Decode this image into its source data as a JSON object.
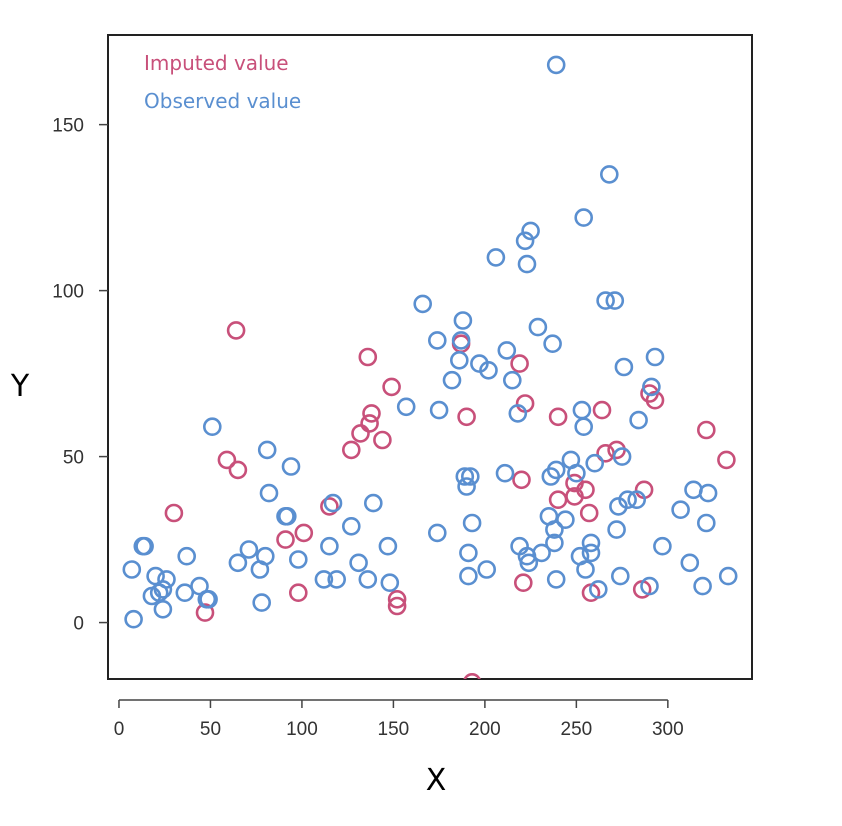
{
  "chart_data": {
    "type": "scatter",
    "xlabel": "X",
    "ylabel": "Y",
    "xlim": [
      -6,
      346
    ],
    "ylim": [
      -17,
      177
    ],
    "x_ticks": [
      0,
      50,
      100,
      150,
      200,
      250,
      300
    ],
    "y_ticks": [
      0,
      50,
      100,
      150
    ],
    "grid": false,
    "legend_position": "top-left",
    "marker": "open-circle",
    "series": [
      {
        "name": "Imputed value",
        "color": "#C8507A",
        "points": [
          [
            30,
            33
          ],
          [
            47,
            3
          ],
          [
            59,
            49
          ],
          [
            64,
            88
          ],
          [
            65,
            46
          ],
          [
            91,
            25
          ],
          [
            98,
            9
          ],
          [
            101,
            27
          ],
          [
            115,
            35
          ],
          [
            127,
            52
          ],
          [
            132,
            57
          ],
          [
            136,
            80
          ],
          [
            137,
            60
          ],
          [
            138,
            63
          ],
          [
            144,
            55
          ],
          [
            149,
            71
          ],
          [
            152,
            7
          ],
          [
            152,
            5
          ],
          [
            187,
            84
          ],
          [
            190,
            62
          ],
          [
            193,
            -18
          ],
          [
            219,
            78
          ],
          [
            220,
            43
          ],
          [
            221,
            12
          ],
          [
            222,
            66
          ],
          [
            240,
            62
          ],
          [
            240,
            37
          ],
          [
            249,
            42
          ],
          [
            249,
            38
          ],
          [
            255,
            40
          ],
          [
            257,
            33
          ],
          [
            258,
            9
          ],
          [
            264,
            64
          ],
          [
            266,
            51
          ],
          [
            272,
            52
          ],
          [
            286,
            10
          ],
          [
            287,
            40
          ],
          [
            290,
            69
          ],
          [
            293,
            67
          ],
          [
            321,
            58
          ],
          [
            332,
            49
          ]
        ]
      },
      {
        "name": "Observed value",
        "color": "#5A8FD0",
        "points": [
          [
            7,
            16
          ],
          [
            8,
            1
          ],
          [
            13,
            23
          ],
          [
            14,
            23
          ],
          [
            18,
            8
          ],
          [
            20,
            14
          ],
          [
            22,
            9
          ],
          [
            24,
            10
          ],
          [
            24,
            4
          ],
          [
            26,
            13
          ],
          [
            36,
            9
          ],
          [
            37,
            20
          ],
          [
            44,
            11
          ],
          [
            48,
            7
          ],
          [
            49,
            7
          ],
          [
            51,
            59
          ],
          [
            65,
            18
          ],
          [
            71,
            22
          ],
          [
            77,
            16
          ],
          [
            78,
            6
          ],
          [
            80,
            20
          ],
          [
            81,
            52
          ],
          [
            82,
            39
          ],
          [
            91,
            32
          ],
          [
            92,
            32
          ],
          [
            94,
            47
          ],
          [
            98,
            19
          ],
          [
            112,
            13
          ],
          [
            115,
            23
          ],
          [
            117,
            36
          ],
          [
            119,
            13
          ],
          [
            127,
            29
          ],
          [
            131,
            18
          ],
          [
            136,
            13
          ],
          [
            139,
            36
          ],
          [
            147,
            23
          ],
          [
            148,
            12
          ],
          [
            157,
            65
          ],
          [
            166,
            96
          ],
          [
            174,
            85
          ],
          [
            174,
            27
          ],
          [
            175,
            64
          ],
          [
            182,
            73
          ],
          [
            186,
            79
          ],
          [
            187,
            85
          ],
          [
            188,
            91
          ],
          [
            189,
            44
          ],
          [
            190,
            41
          ],
          [
            191,
            21
          ],
          [
            191,
            14
          ],
          [
            192,
            44
          ],
          [
            193,
            30
          ],
          [
            197,
            78
          ],
          [
            201,
            16
          ],
          [
            202,
            76
          ],
          [
            206,
            110
          ],
          [
            211,
            45
          ],
          [
            212,
            82
          ],
          [
            215,
            73
          ],
          [
            218,
            63
          ],
          [
            219,
            23
          ],
          [
            222,
            115
          ],
          [
            223,
            108
          ],
          [
            223,
            20
          ],
          [
            224,
            18
          ],
          [
            225,
            118
          ],
          [
            229,
            89
          ],
          [
            231,
            21
          ],
          [
            235,
            32
          ],
          [
            236,
            44
          ],
          [
            237,
            84
          ],
          [
            238,
            28
          ],
          [
            238,
            24
          ],
          [
            239,
            168
          ],
          [
            239,
            46
          ],
          [
            239,
            13
          ],
          [
            244,
            31
          ],
          [
            247,
            49
          ],
          [
            250,
            45
          ],
          [
            252,
            20
          ],
          [
            253,
            64
          ],
          [
            254,
            59
          ],
          [
            254,
            122
          ],
          [
            255,
            16
          ],
          [
            258,
            21
          ],
          [
            258,
            24
          ],
          [
            260,
            48
          ],
          [
            262,
            10
          ],
          [
            266,
            97
          ],
          [
            268,
            135
          ],
          [
            271,
            97
          ],
          [
            272,
            28
          ],
          [
            273,
            35
          ],
          [
            274,
            14
          ],
          [
            275,
            50
          ],
          [
            276,
            77
          ],
          [
            278,
            37
          ],
          [
            283,
            37
          ],
          [
            284,
            61
          ],
          [
            290,
            11
          ],
          [
            291,
            71
          ],
          [
            293,
            80
          ],
          [
            297,
            23
          ],
          [
            307,
            34
          ],
          [
            312,
            18
          ],
          [
            314,
            40
          ],
          [
            319,
            11
          ],
          [
            321,
            30
          ],
          [
            322,
            39
          ],
          [
            333,
            14
          ]
        ]
      }
    ]
  }
}
